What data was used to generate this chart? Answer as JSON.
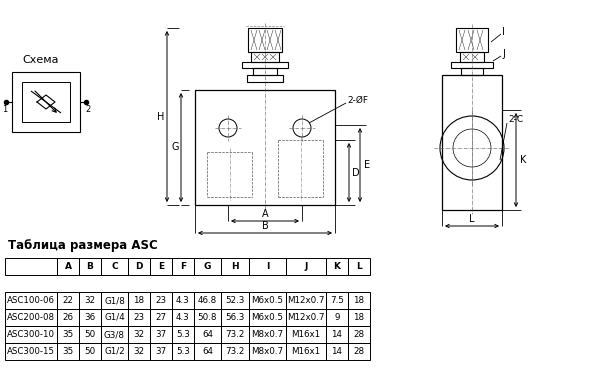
{
  "title": "Таблица размера ASC",
  "schema_label": "Схема",
  "background_color": "#ffffff",
  "table_headers": [
    "",
    "A",
    "B",
    "C",
    "D",
    "E",
    "F",
    "G",
    "H",
    "I",
    "J",
    "K",
    "L"
  ],
  "table_rows": [
    [
      "ASC100-06",
      "22",
      "32",
      "G1/8",
      "18",
      "23",
      "4.3",
      "46.8",
      "52.3",
      "M6x0.5",
      "M12x0.7",
      "7.5",
      "18"
    ],
    [
      "ASC200-08",
      "26",
      "36",
      "G1/4",
      "23",
      "27",
      "4.3",
      "50.8",
      "56.3",
      "M6x0.5",
      "M12x0.7",
      "9",
      "18"
    ],
    [
      "ASC300-10",
      "35",
      "50",
      "G3/8",
      "32",
      "37",
      "5.3",
      "64",
      "73.2",
      "M8x0.7",
      "M16x1",
      "14",
      "28"
    ],
    [
      "ASC300-15",
      "35",
      "50",
      "G1/2",
      "32",
      "37",
      "5.3",
      "64",
      "73.2",
      "M8x0.7",
      "M16x1",
      "14",
      "28"
    ]
  ],
  "line_color": "#000000",
  "text_color": "#000000"
}
